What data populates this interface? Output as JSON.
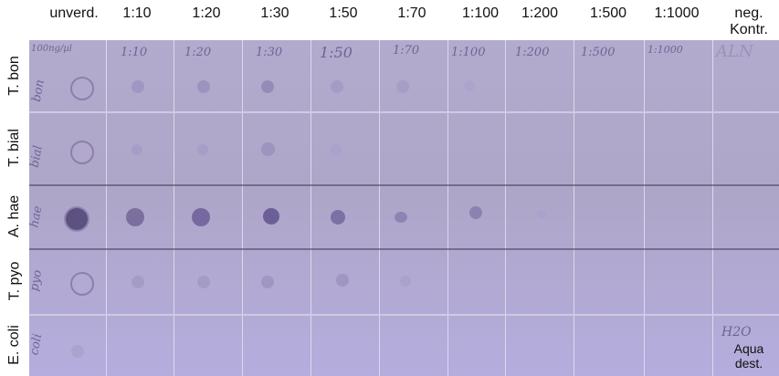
{
  "columns": [
    "unverd.",
    "1:10",
    "1:20",
    "1:30",
    "1:50",
    "1:70",
    "1:100",
    "1:200",
    "1:500",
    "1:1000",
    "neg. Kontr."
  ],
  "rows": [
    "T. bon",
    "T. bial",
    "A. hae",
    "T. pyo",
    "E. coli"
  ],
  "handwritten_top": [
    "100ng/µl",
    "1:10",
    "1:20",
    "1:30",
    "1:50",
    "1:70",
    "1:100",
    "1:200",
    "1:500",
    "1:1000",
    "ALN"
  ],
  "handwritten_left": [
    "bon",
    "bial",
    "hae",
    "pyo",
    "coli"
  ],
  "neg_control_bottom": {
    "handwritten": "H2O",
    "printed": "Aqua dest."
  },
  "colors": {
    "membrane": "#b1a9cb",
    "spot_dark": "#5d5180",
    "spot_light": "#a79ec8"
  }
}
